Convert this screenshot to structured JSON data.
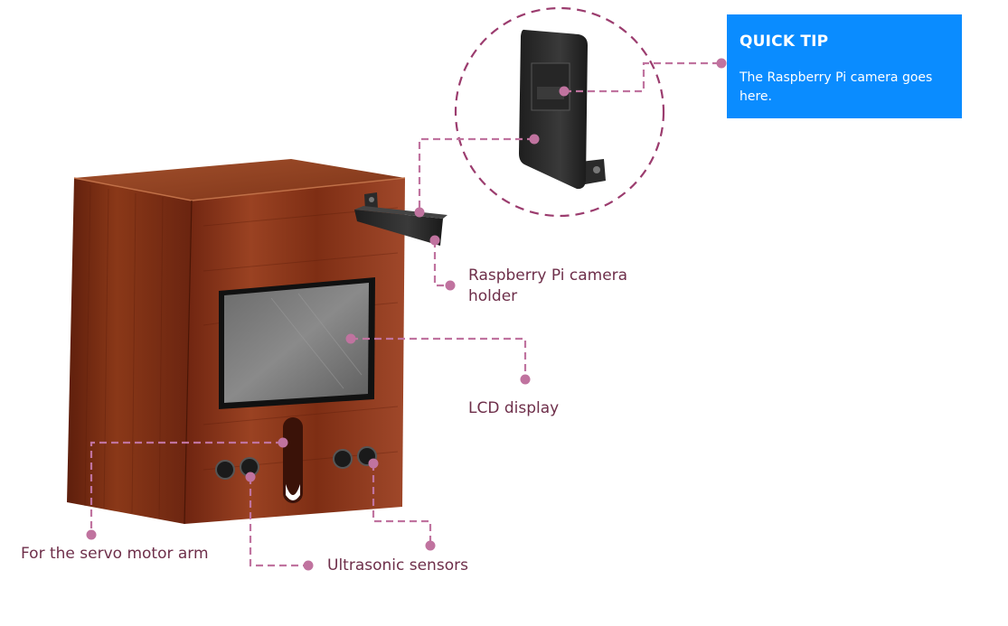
{
  "quick_tip": {
    "title": "QUICK TIP",
    "body": "The Raspberry Pi camera goes here."
  },
  "callouts": {
    "camera_holder": "Raspberry Pi camera\nholder",
    "lcd_display": "LCD display",
    "servo_arm": "For the servo motor arm",
    "ultrasonic": "Ultrasonic sensors"
  },
  "colors": {
    "callout_line": "#c0739f",
    "label_text": "#6e2f4a",
    "tip_background": "#0a8cff",
    "wood": "#8b3a1c"
  }
}
